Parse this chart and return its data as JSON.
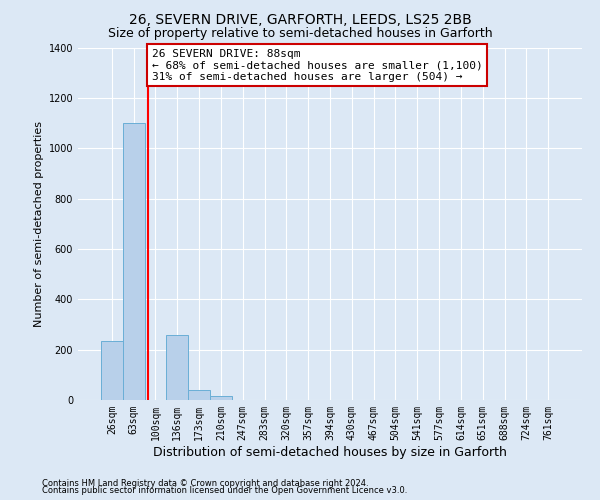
{
  "title": "26, SEVERN DRIVE, GARFORTH, LEEDS, LS25 2BB",
  "subtitle": "Size of property relative to semi-detached houses in Garforth",
  "xlabel": "Distribution of semi-detached houses by size in Garforth",
  "ylabel": "Number of semi-detached properties",
  "footer_line1": "Contains HM Land Registry data © Crown copyright and database right 2024.",
  "footer_line2": "Contains public sector information licensed under the Open Government Licence v3.0.",
  "bin_labels": [
    "26sqm",
    "63sqm",
    "100sqm",
    "136sqm",
    "173sqm",
    "210sqm",
    "247sqm",
    "283sqm",
    "320sqm",
    "357sqm",
    "394sqm",
    "430sqm",
    "467sqm",
    "504sqm",
    "541sqm",
    "577sqm",
    "614sqm",
    "651sqm",
    "688sqm",
    "724sqm",
    "761sqm"
  ],
  "bar_values": [
    235,
    1100,
    0,
    260,
    40,
    15,
    0,
    0,
    0,
    0,
    0,
    0,
    0,
    0,
    0,
    0,
    0,
    0,
    0,
    0,
    0
  ],
  "bar_color": "#b8d0ea",
  "bar_edge_color": "#6aaed6",
  "ylim": [
    0,
    1400
  ],
  "yticks": [
    0,
    200,
    400,
    600,
    800,
    1000,
    1200,
    1400
  ],
  "annotation_text": "26 SEVERN DRIVE: 88sqm\n← 68% of semi-detached houses are smaller (1,100)\n31% of semi-detached houses are larger (504) →",
  "annotation_box_color": "#ffffff",
  "annotation_box_edge": "#cc0000",
  "red_line_index": 1.68,
  "background_color": "#dce8f5",
  "grid_color": "#ffffff",
  "title_fontsize": 10,
  "subtitle_fontsize": 9,
  "ylabel_fontsize": 8,
  "xlabel_fontsize": 9,
  "footer_fontsize": 6,
  "tick_fontsize": 7
}
